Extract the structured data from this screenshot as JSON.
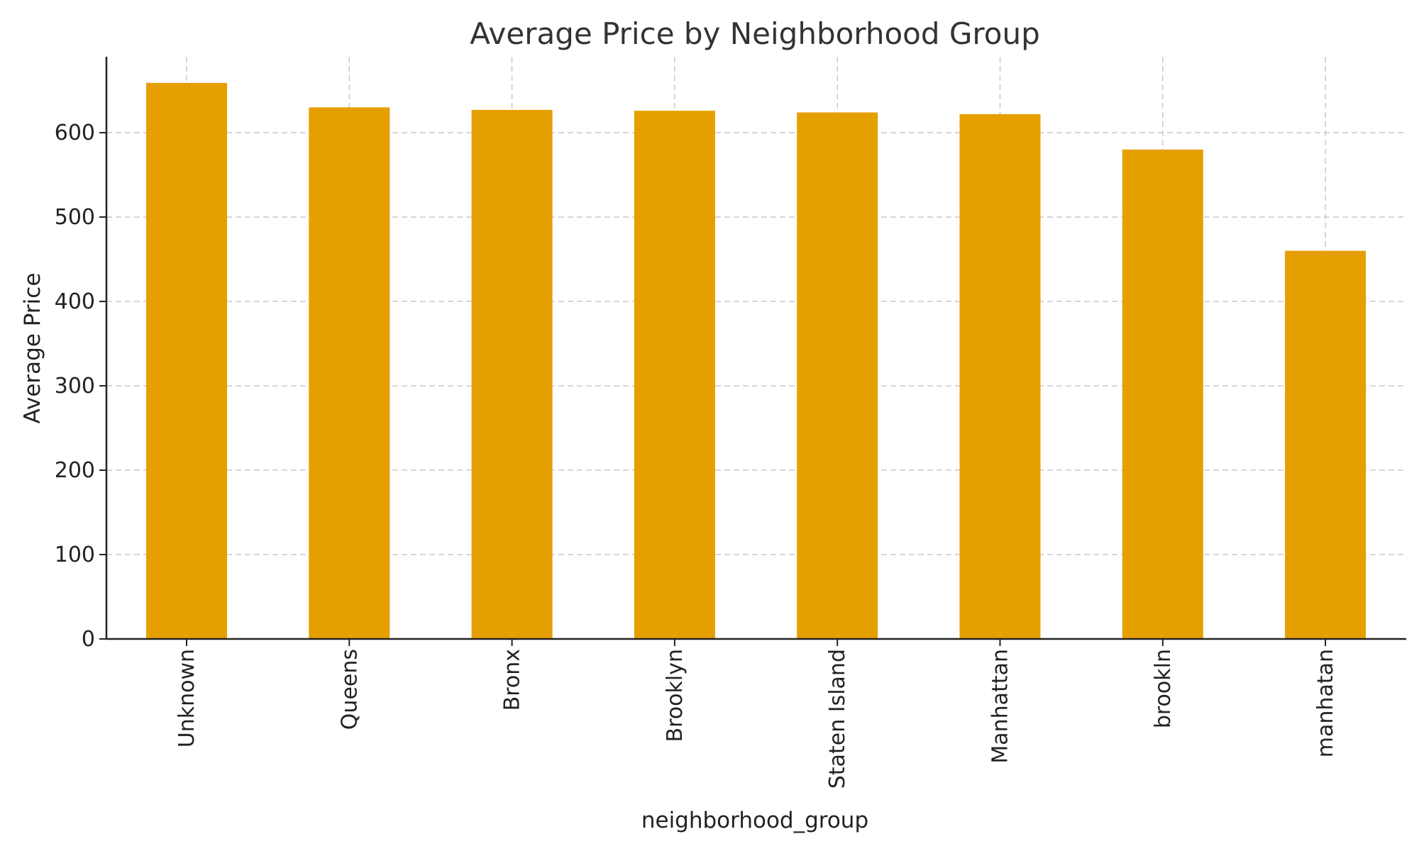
{
  "chart_data": {
    "type": "bar",
    "title": "Average Price by Neighborhood Group",
    "xlabel": "neighborhood_group",
    "ylabel": "Average Price",
    "categories": [
      "Unknown",
      "Queens",
      "Bronx",
      "Brooklyn",
      "Staten Island",
      "Manhattan",
      "brookln",
      "manhatan"
    ],
    "values": [
      659,
      630,
      627,
      626,
      624,
      622,
      580,
      460
    ],
    "ylim": [
      0,
      690
    ],
    "yticks": [
      0,
      100,
      200,
      300,
      400,
      500,
      600
    ],
    "ytick_labels": [
      "0",
      "100",
      "200",
      "300",
      "400",
      "500",
      "600"
    ],
    "grid": true,
    "bar_color": "#E69F00",
    "grid_color": "#C8C8C8"
  }
}
